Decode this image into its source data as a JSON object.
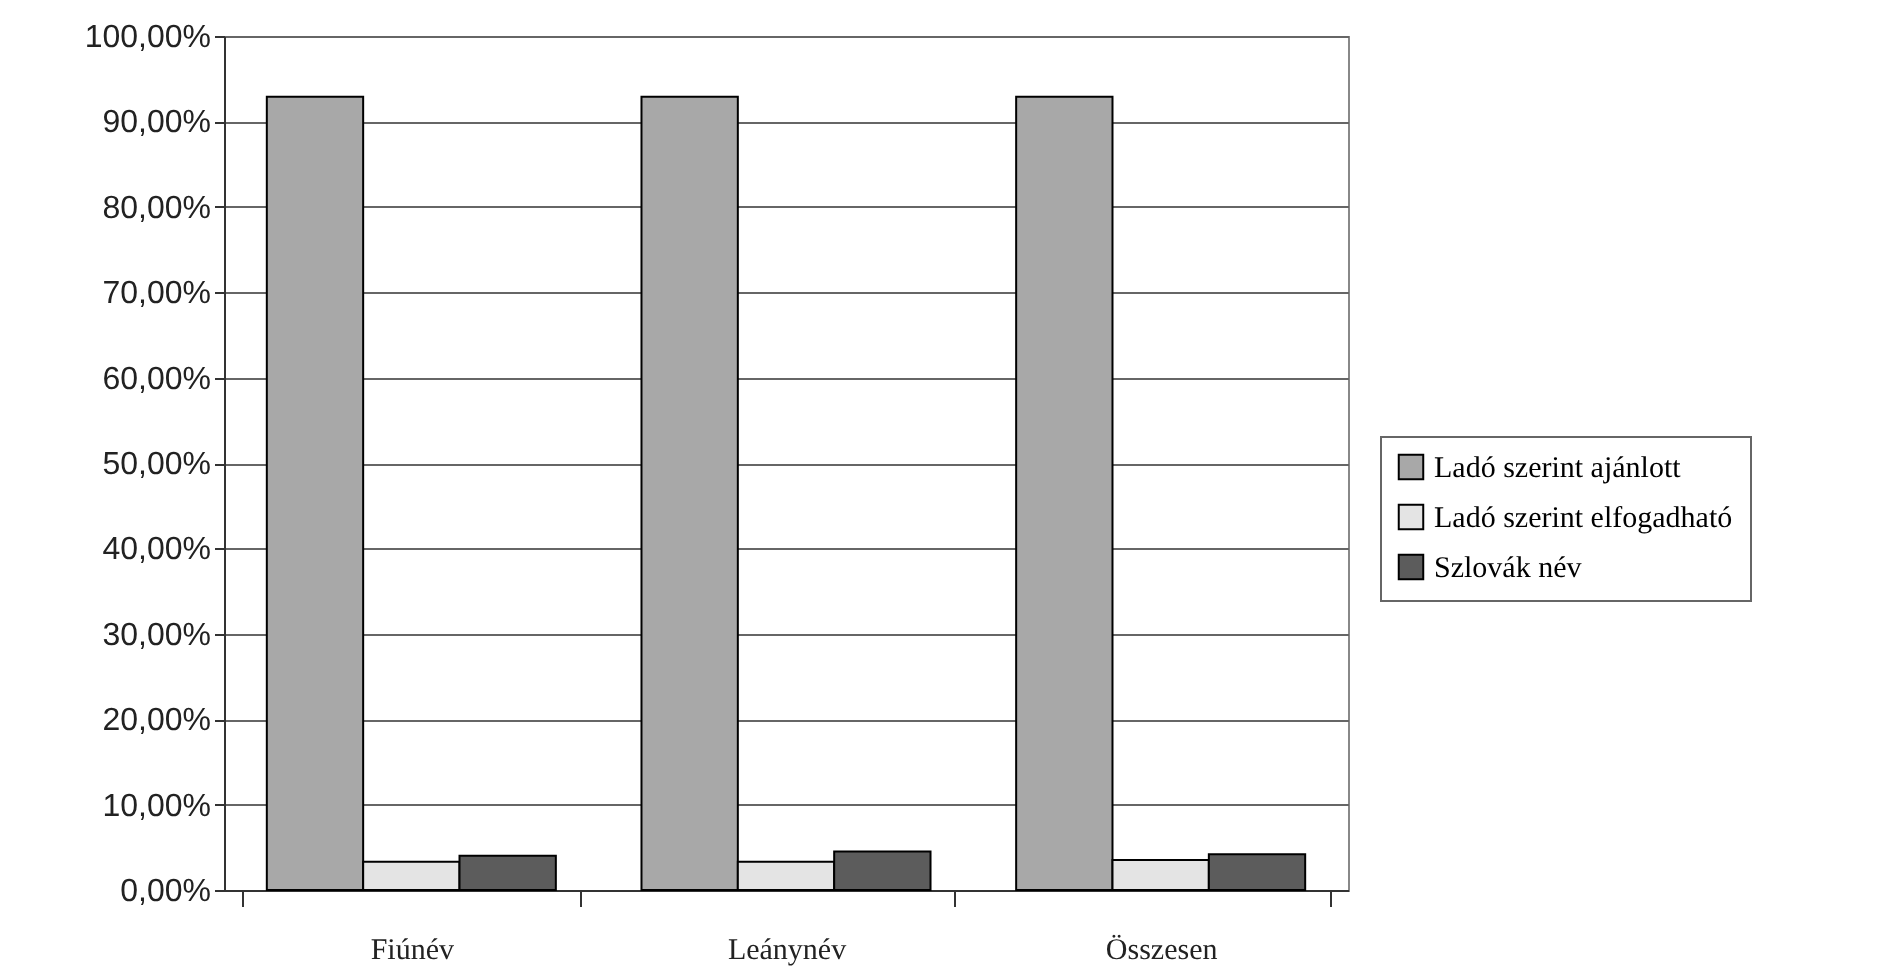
{
  "chart_data": {
    "type": "bar",
    "categories": [
      "Fiúnév",
      "Leánynév",
      "Összesen"
    ],
    "series": [
      {
        "name": "Ladó szerint ajánlott",
        "color": "#a8a8a8",
        "values": [
          92.9,
          92.9,
          92.9
        ]
      },
      {
        "name": "Ladó szerint elfogadható",
        "color": "#e4e4e4",
        "values": [
          3.3,
          3.3,
          3.5
        ]
      },
      {
        "name": "Szlovák név",
        "color": "#5c5c5c",
        "values": [
          4.0,
          4.5,
          4.2
        ]
      }
    ],
    "ylim": [
      0,
      100
    ],
    "yticks": [
      {
        "value": 0,
        "label": "0,00%"
      },
      {
        "value": 10,
        "label": "10,00%"
      },
      {
        "value": 20,
        "label": "20,00%"
      },
      {
        "value": 30,
        "label": "30,00%"
      },
      {
        "value": 40,
        "label": "40,00%"
      },
      {
        "value": 50,
        "label": "50,00%"
      },
      {
        "value": 60,
        "label": "60,00%"
      },
      {
        "value": 70,
        "label": "70,00%"
      },
      {
        "value": 80,
        "label": "80,00%"
      },
      {
        "value": 90,
        "label": "90,00%"
      },
      {
        "value": 100,
        "label": "100,00%"
      }
    ],
    "grid": "y",
    "legend": "right"
  }
}
